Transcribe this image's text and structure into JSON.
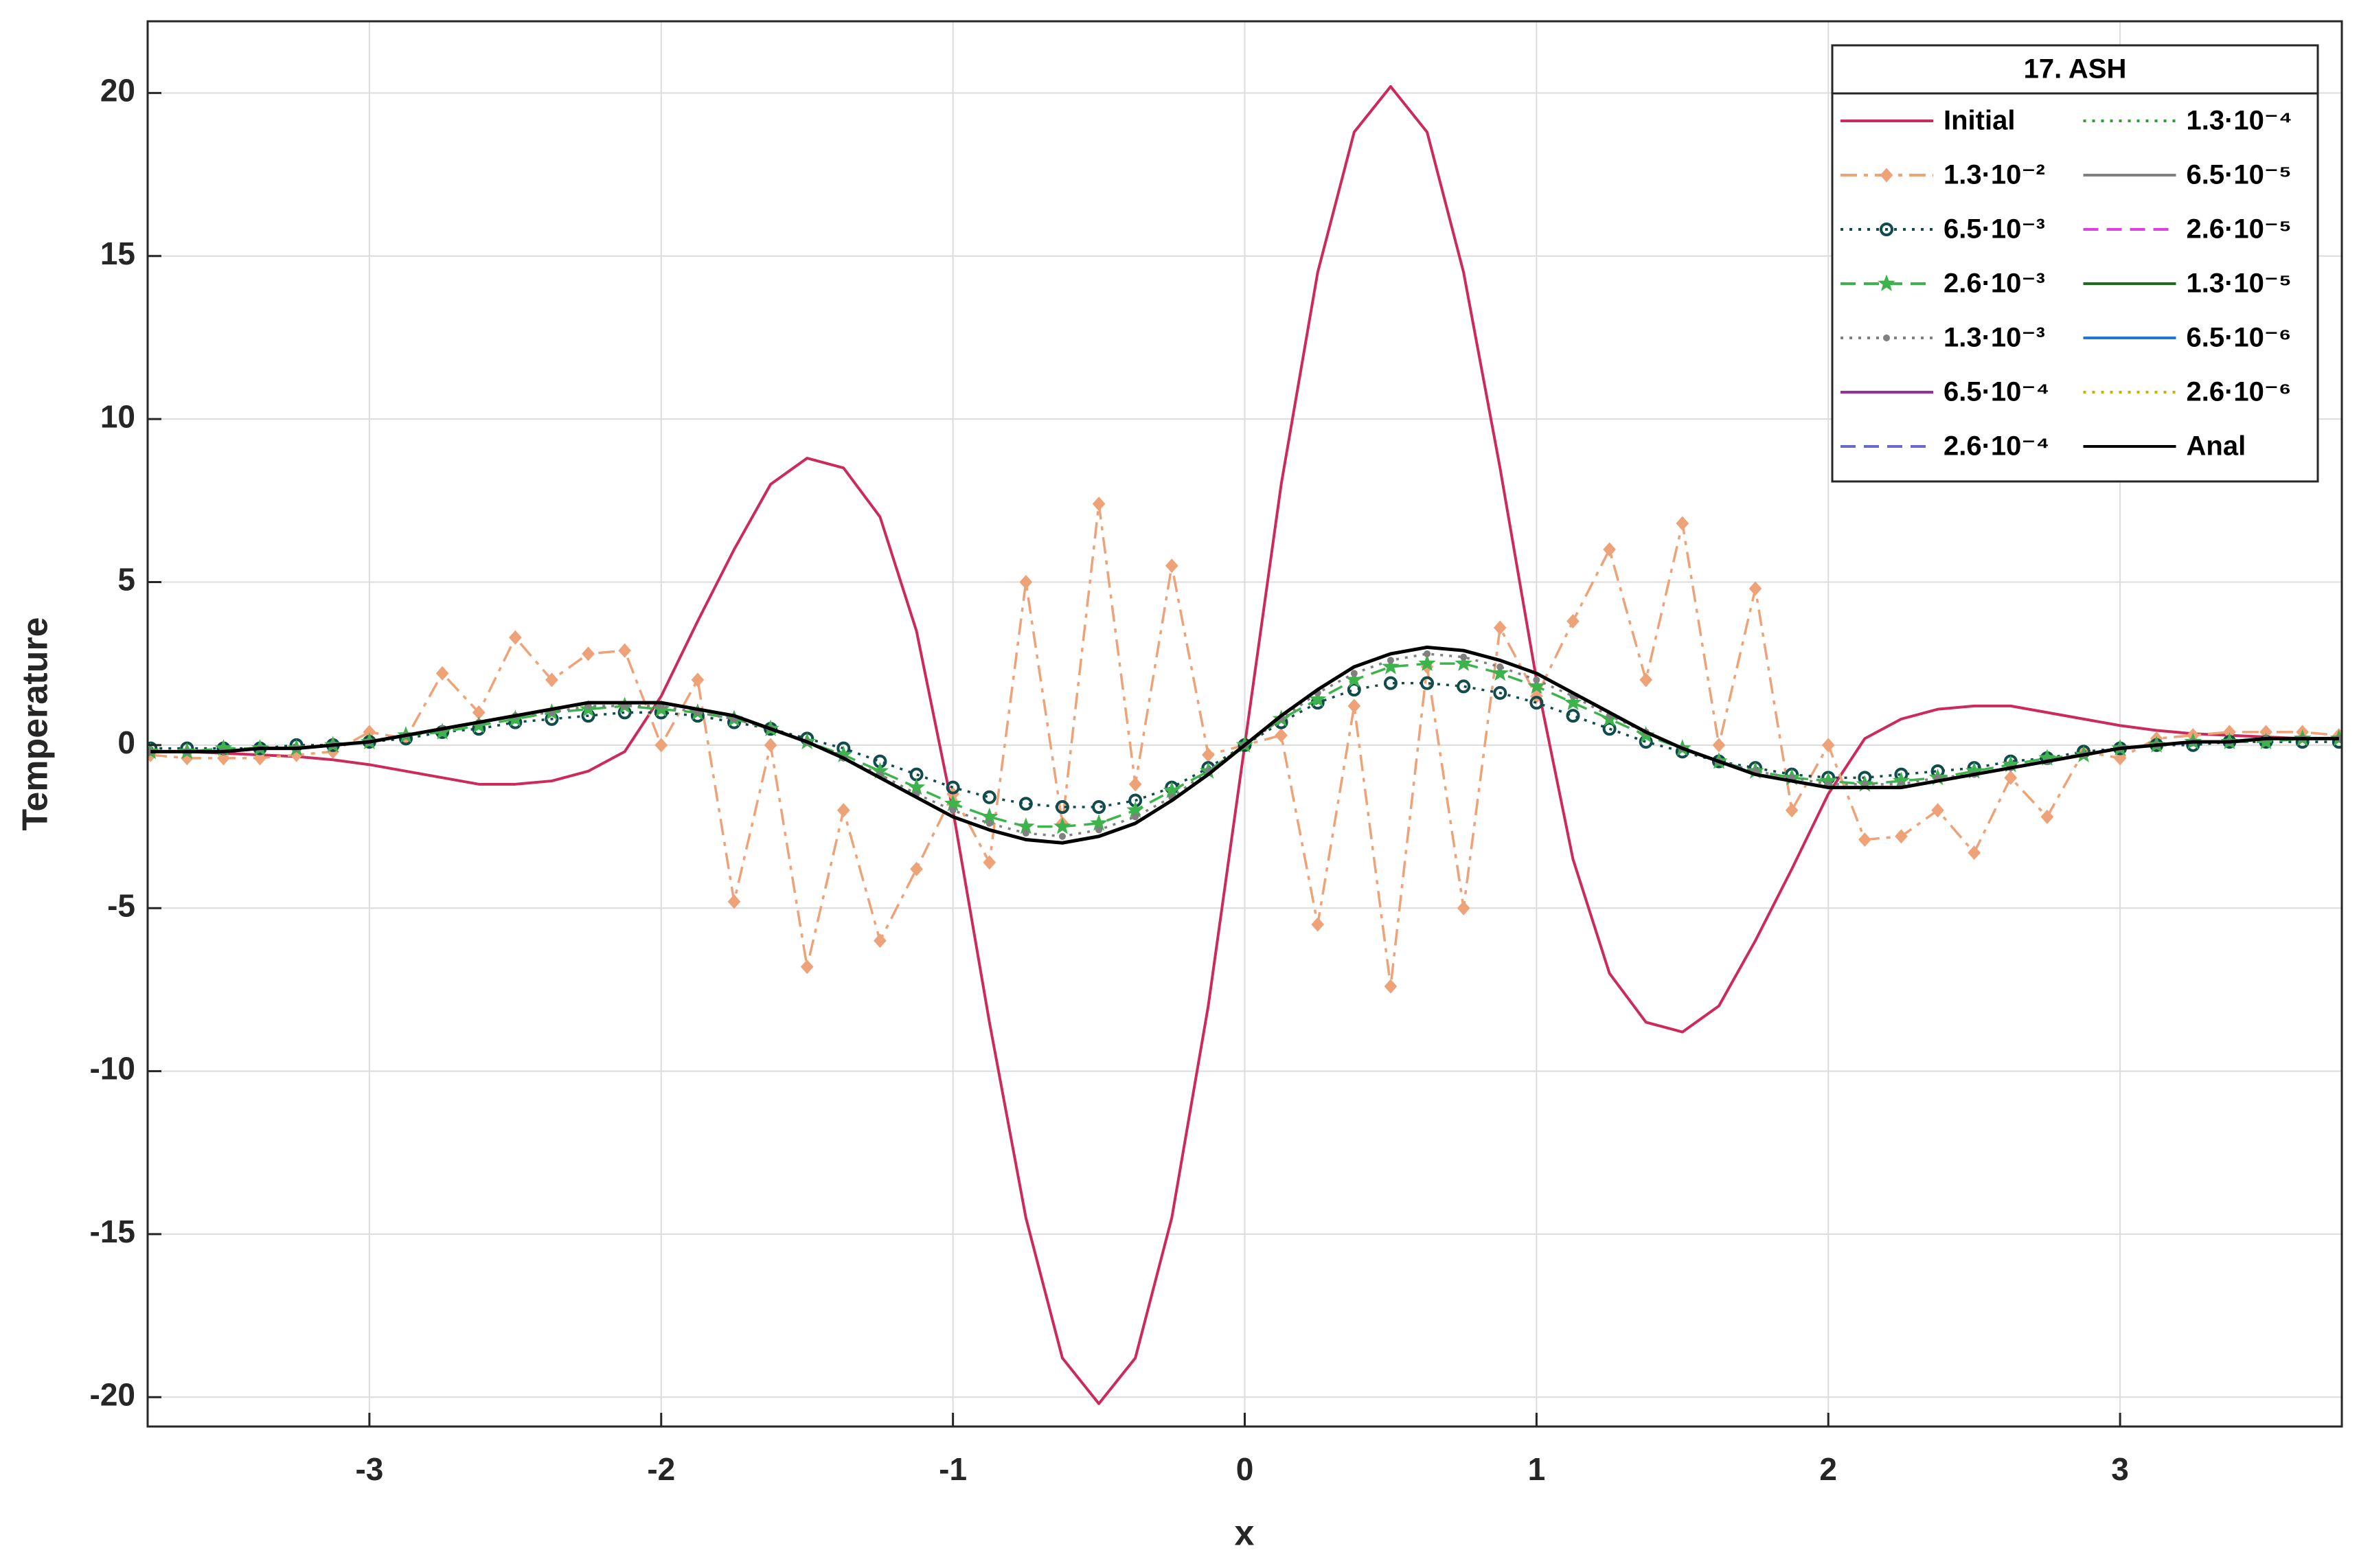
{
  "chart_data": {
    "type": "line",
    "xlabel": "x",
    "ylabel": "Temperature",
    "legend_title": "17. ASH",
    "legend_loc": "northeast",
    "legend_columns": 2,
    "grid": true,
    "xlim": [
      -3.76,
      3.76
    ],
    "ylim": [
      -20.9,
      22.2
    ],
    "xticks": [
      -3,
      -2,
      -1,
      0,
      1,
      2,
      3
    ],
    "yticks": [
      -20,
      -15,
      -10,
      -5,
      0,
      5,
      10,
      15,
      20
    ],
    "x": [
      -3.75,
      -3.625,
      -3.5,
      -3.375,
      -3.25,
      -3.125,
      -3,
      -2.875,
      -2.75,
      -2.625,
      -2.5,
      -2.375,
      -2.25,
      -2.125,
      -2,
      -1.875,
      -1.75,
      -1.625,
      -1.5,
      -1.375,
      -1.25,
      -1.125,
      -1,
      -0.875,
      -0.75,
      -0.625,
      -0.5,
      -0.375,
      -0.25,
      -0.125,
      0,
      0.125,
      0.25,
      0.375,
      0.5,
      0.625,
      0.75,
      0.875,
      1,
      1.125,
      1.25,
      1.375,
      1.5,
      1.625,
      1.75,
      1.875,
      2,
      2.125,
      2.25,
      2.375,
      2.5,
      2.625,
      2.75,
      2.875,
      3,
      3.125,
      3.25,
      3.375,
      3.5,
      3.625,
      3.75
    ],
    "series": [
      {
        "name": "Initial",
        "color": "#cc2a5a",
        "dash": "solid",
        "values": [
          -0.2,
          -0.2,
          -0.25,
          -0.3,
          -0.35,
          -0.45,
          -0.6,
          -0.8,
          -1.0,
          -1.2,
          -1.2,
          -1.1,
          -0.8,
          -0.2,
          1.5,
          3.8,
          6,
          8,
          8.8,
          8.5,
          7,
          3.5,
          -2.0,
          -8.5,
          -14.5,
          -18.8,
          -20.2,
          -18.8,
          -14.5,
          -8,
          0,
          8,
          14.5,
          18.8,
          20.2,
          18.8,
          14.5,
          8.5,
          2.0,
          -3.5,
          -7,
          -8.5,
          -8.8,
          -8,
          -6,
          -3.8,
          -1.5,
          0.2,
          0.8,
          1.1,
          1.2,
          1.2,
          1.0,
          0.8,
          0.6,
          0.45,
          0.35,
          0.3,
          0.25,
          0.2,
          0.2
        ]
      },
      {
        "name": "1.3·10⁻²",
        "color": "#eea277",
        "dash": "dashdot",
        "marker": "diamond",
        "values": [
          -0.3,
          -0.4,
          -0.4,
          -0.4,
          -0.3,
          -0.2,
          0.4,
          0.2,
          2.2,
          1,
          3.3,
          2,
          2.8,
          2.9,
          0,
          2,
          -4.8,
          0,
          -6.8,
          -2,
          -6,
          -3.8,
          -1.5,
          -3.6,
          5,
          -2.4,
          7.4,
          -1.2,
          5.5,
          -0.3,
          0,
          0.3,
          -5.5,
          1.2,
          -7.4,
          2.4,
          -5,
          3.6,
          1.5,
          3.8,
          6,
          2,
          6.8,
          0,
          4.8,
          -2,
          0,
          -2.9,
          -2.8,
          -2,
          -3.3,
          -1,
          -2.2,
          -0.2,
          -0.4,
          0.2,
          0.3,
          0.4,
          0.4,
          0.4,
          0.3
        ]
      },
      {
        "name": "6.5·10⁻³",
        "color": "#114b4b",
        "dash": "dot",
        "marker": "circle",
        "values": [
          -0.1,
          -0.1,
          -0.1,
          -0.1,
          0,
          0,
          0.1,
          0.2,
          0.4,
          0.5,
          0.7,
          0.8,
          0.9,
          1.0,
          1.0,
          0.9,
          0.7,
          0.5,
          0.2,
          -0.1,
          -0.5,
          -0.9,
          -1.3,
          -1.6,
          -1.8,
          -1.9,
          -1.9,
          -1.7,
          -1.3,
          -0.7,
          0,
          0.7,
          1.3,
          1.7,
          1.9,
          1.9,
          1.8,
          1.6,
          1.3,
          0.9,
          0.5,
          0.1,
          -0.2,
          -0.5,
          -0.7,
          -0.9,
          -1.0,
          -1.0,
          -0.9,
          -0.8,
          -0.7,
          -0.5,
          -0.4,
          -0.2,
          -0.1,
          0,
          0,
          0.1,
          0.1,
          0.1,
          0.1
        ]
      },
      {
        "name": "2.6·10⁻³",
        "color": "#3cb44b",
        "dash": "dash",
        "marker": "star",
        "values": [
          -0.2,
          -0.2,
          -0.1,
          -0.1,
          -0.1,
          0,
          0.1,
          0.3,
          0.4,
          0.6,
          0.8,
          1.0,
          1.1,
          1.2,
          1.1,
          1.0,
          0.8,
          0.5,
          0.1,
          -0.3,
          -0.8,
          -1.3,
          -1.8,
          -2.2,
          -2.5,
          -2.5,
          -2.4,
          -2.0,
          -1.4,
          -0.8,
          0,
          0.8,
          1.4,
          2.0,
          2.4,
          2.5,
          2.5,
          2.2,
          1.8,
          1.3,
          0.8,
          0.3,
          -0.1,
          -0.5,
          -0.8,
          -1.0,
          -1.1,
          -1.2,
          -1.1,
          -1.0,
          -0.8,
          -0.6,
          -0.4,
          -0.3,
          -0.1,
          0,
          0.1,
          0.1,
          0.1,
          0.2,
          0.2
        ]
      },
      {
        "name": "1.3·10⁻³",
        "color": "#808080",
        "dash": "dot",
        "marker": "dot",
        "values": [
          -0.2,
          -0.2,
          -0.2,
          -0.1,
          -0.1,
          0,
          0.1,
          0.3,
          0.5,
          0.7,
          0.9,
          1.0,
          1.2,
          1.2,
          1.2,
          1.0,
          0.8,
          0.5,
          0.1,
          -0.4,
          -0.9,
          -1.5,
          -2.0,
          -2.4,
          -2.7,
          -2.8,
          -2.6,
          -2.2,
          -1.6,
          -0.8,
          0,
          0.8,
          1.6,
          2.2,
          2.6,
          2.8,
          2.7,
          2.4,
          2.0,
          1.5,
          0.9,
          0.4,
          -0.1,
          -0.5,
          -0.8,
          -1.0,
          -1.2,
          -1.2,
          -1.2,
          -1.0,
          -0.9,
          -0.7,
          -0.5,
          -0.3,
          -0.1,
          0,
          0.1,
          0.1,
          0.2,
          0.2,
          0.2
        ]
      },
      {
        "name": "6.5·10⁻⁴",
        "color": "#9a2f9a",
        "dash": "solid",
        "values": [
          -0.2,
          -0.2,
          -0.2,
          -0.1,
          -0.1,
          0,
          0.1,
          0.3,
          0.5,
          0.7,
          0.9,
          1.1,
          1.3,
          1.3,
          1.3,
          1.1,
          0.9,
          0.5,
          0.1,
          -0.4,
          -1.0,
          -1.6,
          -2.2,
          -2.6,
          -2.9,
          -3.0,
          -2.8,
          -2.4,
          -1.7,
          -0.9,
          0,
          0.9,
          1.7,
          2.4,
          2.8,
          3.0,
          2.9,
          2.6,
          2.2,
          1.6,
          1.0,
          0.4,
          -0.1,
          -0.5,
          -0.9,
          -1.1,
          -1.3,
          -1.3,
          -1.3,
          -1.1,
          -0.9,
          -0.7,
          -0.5,
          -0.3,
          -0.1,
          0,
          0.1,
          0.1,
          0.2,
          0.2,
          0.2
        ]
      },
      {
        "name": "2.6·10⁻⁴",
        "color": "#6a6acd",
        "dash": "dash",
        "values": [
          -0.2,
          -0.2,
          -0.2,
          -0.1,
          -0.1,
          0,
          0.1,
          0.3,
          0.5,
          0.7,
          0.9,
          1.1,
          1.3,
          1.3,
          1.3,
          1.1,
          0.9,
          0.5,
          0.1,
          -0.4,
          -1.0,
          -1.6,
          -2.2,
          -2.6,
          -2.9,
          -3.0,
          -2.8,
          -2.4,
          -1.7,
          -0.9,
          0,
          0.9,
          1.7,
          2.4,
          2.8,
          3.0,
          2.9,
          2.6,
          2.2,
          1.6,
          1.0,
          0.4,
          -0.1,
          -0.5,
          -0.9,
          -1.1,
          -1.3,
          -1.3,
          -1.3,
          -1.1,
          -0.9,
          -0.7,
          -0.5,
          -0.3,
          -0.1,
          0,
          0.1,
          0.1,
          0.2,
          0.2,
          0.2
        ]
      },
      {
        "name": "1.3·10⁻⁴",
        "color": "#2ca02c",
        "dash": "dot",
        "values": [
          -0.2,
          -0.2,
          -0.2,
          -0.1,
          -0.1,
          0,
          0.1,
          0.3,
          0.5,
          0.7,
          0.9,
          1.1,
          1.3,
          1.3,
          1.3,
          1.1,
          0.9,
          0.5,
          0.1,
          -0.4,
          -1.0,
          -1.6,
          -2.2,
          -2.6,
          -2.9,
          -3.0,
          -2.8,
          -2.4,
          -1.7,
          -0.9,
          0,
          0.9,
          1.7,
          2.4,
          2.8,
          3.0,
          2.9,
          2.6,
          2.2,
          1.6,
          1.0,
          0.4,
          -0.1,
          -0.5,
          -0.9,
          -1.1,
          -1.3,
          -1.3,
          -1.3,
          -1.1,
          -0.9,
          -0.7,
          -0.5,
          -0.3,
          -0.1,
          0,
          0.1,
          0.1,
          0.2,
          0.2,
          0.2
        ]
      },
      {
        "name": "6.5·10⁻⁵",
        "color": "#808080",
        "dash": "solid",
        "values": [
          -0.2,
          -0.2,
          -0.2,
          -0.1,
          -0.1,
          0,
          0.1,
          0.3,
          0.5,
          0.7,
          0.9,
          1.1,
          1.3,
          1.3,
          1.3,
          1.1,
          0.9,
          0.5,
          0.1,
          -0.4,
          -1.0,
          -1.6,
          -2.2,
          -2.6,
          -2.9,
          -3.0,
          -2.8,
          -2.4,
          -1.7,
          -0.9,
          0,
          0.9,
          1.7,
          2.4,
          2.8,
          3.0,
          2.9,
          2.6,
          2.2,
          1.6,
          1.0,
          0.4,
          -0.1,
          -0.5,
          -0.9,
          -1.1,
          -1.3,
          -1.3,
          -1.3,
          -1.1,
          -0.9,
          -0.7,
          -0.5,
          -0.3,
          -0.1,
          0,
          0.1,
          0.1,
          0.2,
          0.2,
          0.2
        ]
      },
      {
        "name": "2.6·10⁻⁵",
        "color": "#e040e0",
        "dash": "dash",
        "values": [
          -0.2,
          -0.2,
          -0.2,
          -0.1,
          -0.1,
          0,
          0.1,
          0.3,
          0.5,
          0.7,
          0.9,
          1.1,
          1.3,
          1.3,
          1.3,
          1.1,
          0.9,
          0.5,
          0.1,
          -0.4,
          -1.0,
          -1.6,
          -2.2,
          -2.6,
          -2.9,
          -3.0,
          -2.8,
          -2.4,
          -1.7,
          -0.9,
          0,
          0.9,
          1.7,
          2.4,
          2.8,
          3.0,
          2.9,
          2.6,
          2.2,
          1.6,
          1.0,
          0.4,
          -0.1,
          -0.5,
          -0.9,
          -1.1,
          -1.3,
          -1.3,
          -1.3,
          -1.1,
          -0.9,
          -0.7,
          -0.5,
          -0.3,
          -0.1,
          0,
          0.1,
          0.1,
          0.2,
          0.2,
          0.2
        ]
      },
      {
        "name": "1.3·10⁻⁵",
        "color": "#1b6e1b",
        "dash": "solid",
        "values": [
          -0.2,
          -0.2,
          -0.2,
          -0.1,
          -0.1,
          0,
          0.1,
          0.3,
          0.5,
          0.7,
          0.9,
          1.1,
          1.3,
          1.3,
          1.3,
          1.1,
          0.9,
          0.5,
          0.1,
          -0.4,
          -1.0,
          -1.6,
          -2.2,
          -2.6,
          -2.9,
          -3.0,
          -2.8,
          -2.4,
          -1.7,
          -0.9,
          0,
          0.9,
          1.7,
          2.4,
          2.8,
          3.0,
          2.9,
          2.6,
          2.2,
          1.6,
          1.0,
          0.4,
          -0.1,
          -0.5,
          -0.9,
          -1.1,
          -1.3,
          -1.3,
          -1.3,
          -1.1,
          -0.9,
          -0.7,
          -0.5,
          -0.3,
          -0.1,
          0,
          0.1,
          0.1,
          0.2,
          0.2,
          0.2
        ]
      },
      {
        "name": "6.5·10⁻⁶",
        "color": "#1f77d4",
        "dash": "solid",
        "values": [
          -0.2,
          -0.2,
          -0.2,
          -0.1,
          -0.1,
          0,
          0.1,
          0.3,
          0.5,
          0.7,
          0.9,
          1.1,
          1.3,
          1.3,
          1.3,
          1.1,
          0.9,
          0.5,
          0.1,
          -0.4,
          -1.0,
          -1.6,
          -2.2,
          -2.6,
          -2.9,
          -3.0,
          -2.8,
          -2.4,
          -1.7,
          -0.9,
          0,
          0.9,
          1.7,
          2.4,
          2.8,
          3.0,
          2.9,
          2.6,
          2.2,
          1.6,
          1.0,
          0.4,
          -0.1,
          -0.5,
          -0.9,
          -1.1,
          -1.3,
          -1.3,
          -1.3,
          -1.1,
          -0.9,
          -0.7,
          -0.5,
          -0.3,
          -0.1,
          0,
          0.1,
          0.1,
          0.2,
          0.2,
          0.2
        ]
      },
      {
        "name": "2.6·10⁻⁶",
        "color": "#c8b400",
        "dash": "dot",
        "values": [
          -0.2,
          -0.2,
          -0.2,
          -0.1,
          -0.1,
          0,
          0.1,
          0.3,
          0.5,
          0.7,
          0.9,
          1.1,
          1.3,
          1.3,
          1.3,
          1.1,
          0.9,
          0.5,
          0.1,
          -0.4,
          -1.0,
          -1.6,
          -2.2,
          -2.6,
          -2.9,
          -3.0,
          -2.8,
          -2.4,
          -1.7,
          -0.9,
          0,
          0.9,
          1.7,
          2.4,
          2.8,
          3.0,
          2.9,
          2.6,
          2.2,
          1.6,
          1.0,
          0.4,
          -0.1,
          -0.5,
          -0.9,
          -1.1,
          -1.3,
          -1.3,
          -1.3,
          -1.1,
          -0.9,
          -0.7,
          -0.5,
          -0.3,
          -0.1,
          0,
          0.1,
          0.1,
          0.2,
          0.2,
          0.2
        ]
      },
      {
        "name": "Anal",
        "color": "#000000",
        "dash": "solid",
        "values": [
          -0.2,
          -0.2,
          -0.2,
          -0.1,
          -0.1,
          0,
          0.1,
          0.3,
          0.5,
          0.7,
          0.9,
          1.1,
          1.3,
          1.3,
          1.3,
          1.1,
          0.9,
          0.5,
          0.1,
          -0.4,
          -1.0,
          -1.6,
          -2.2,
          -2.6,
          -2.9,
          -3.0,
          -2.8,
          -2.4,
          -1.7,
          -0.9,
          0,
          0.9,
          1.7,
          2.4,
          2.8,
          3.0,
          2.9,
          2.6,
          2.2,
          1.6,
          1.0,
          0.4,
          -0.1,
          -0.5,
          -0.9,
          -1.1,
          -1.3,
          -1.3,
          -1.3,
          -1.1,
          -0.9,
          -0.7,
          -0.5,
          -0.3,
          -0.1,
          0,
          0.1,
          0.1,
          0.2,
          0.2,
          0.2
        ]
      }
    ]
  }
}
